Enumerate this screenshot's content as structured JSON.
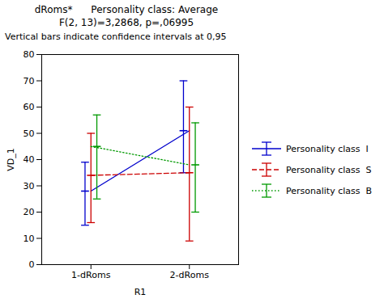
{
  "chart_data": {
    "type": "line",
    "title": "dRoms*      Personality class: Average",
    "subtitle": "F(2, 13)=3,2868, p=,06995",
    "annotations": [
      "Vertical bars indicate confidence intervals at 0,95"
    ],
    "xlabel": "R1",
    "ylabel": "VD_1",
    "categories": [
      "1-dRoms",
      "2-dRoms"
    ],
    "ylim": [
      0,
      80
    ],
    "yticks": [
      0,
      10,
      20,
      30,
      40,
      50,
      60,
      70,
      80
    ],
    "grid": false,
    "legend": "right",
    "series": [
      {
        "name": "Personality class  I",
        "color": "#0000cc",
        "line_style": "solid",
        "values": [
          28,
          51
        ],
        "ci_low": [
          15,
          35
        ],
        "ci_high": [
          39,
          70
        ]
      },
      {
        "name": "Personality class  S",
        "color": "#cc0000",
        "line_style": "dashed",
        "values": [
          34,
          35
        ],
        "ci_low": [
          16,
          9
        ],
        "ci_high": [
          50,
          60
        ]
      },
      {
        "name": "Personality class  B",
        "color": "#009900",
        "line_style": "dotted",
        "values": [
          45,
          38
        ],
        "ci_low": [
          25,
          20
        ],
        "ci_high": [
          57,
          54
        ]
      }
    ]
  }
}
